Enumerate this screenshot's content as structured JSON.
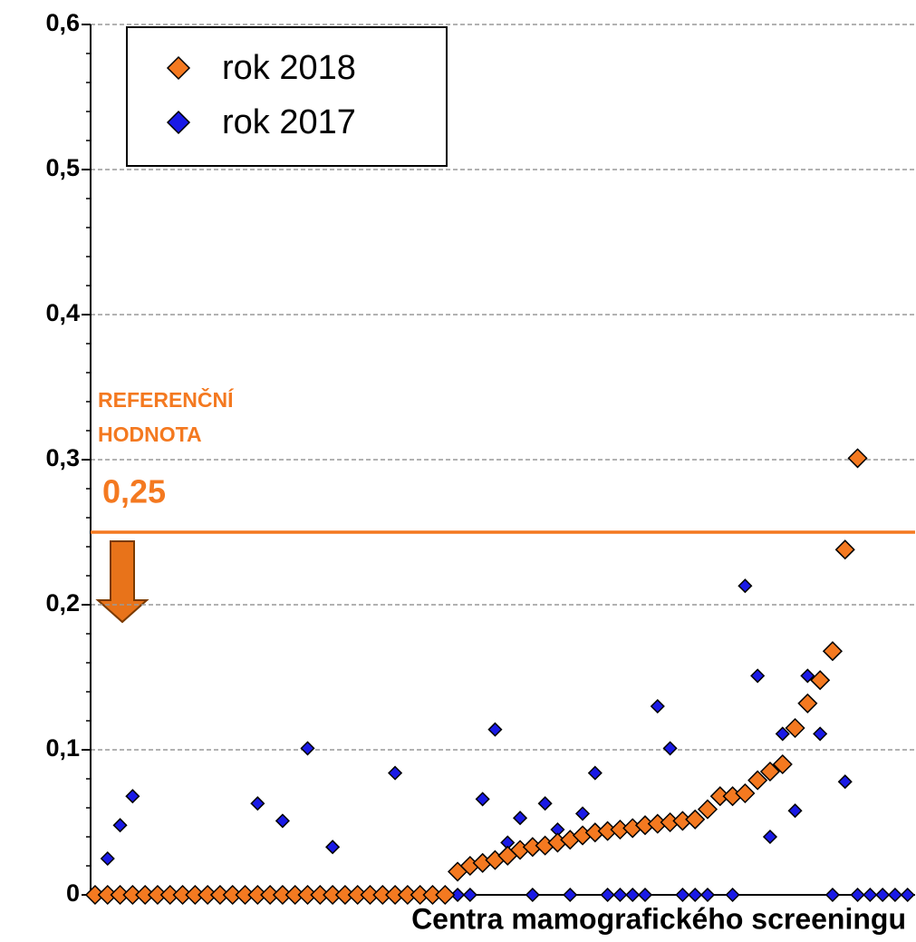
{
  "chart_data": {
    "type": "scatter",
    "xlabel": "Centra mamografického screeningu",
    "x": [
      1,
      2,
      3,
      4,
      5,
      6,
      7,
      8,
      9,
      10,
      11,
      12,
      13,
      14,
      15,
      16,
      17,
      18,
      19,
      20,
      21,
      22,
      23,
      24,
      25,
      26,
      27,
      28,
      29,
      30,
      31,
      32,
      33,
      34,
      35,
      36,
      37,
      38,
      39,
      40,
      41,
      42,
      43,
      44,
      45,
      46,
      47,
      48,
      49,
      50,
      51,
      52,
      53,
      54,
      55,
      56,
      57,
      58,
      59,
      60,
      61,
      62,
      63,
      64,
      65,
      66
    ],
    "xlim": [
      0.64,
      66.6
    ],
    "ylim": [
      0,
      0.6
    ],
    "yticks": [
      0,
      {
        "value": 0.1,
        "label": "0,1"
      },
      {
        "value": 0.2,
        "label": "0,2"
      },
      {
        "value": 0.3,
        "label": "0,3"
      },
      {
        "value": 0.4,
        "label": "0,4"
      },
      {
        "value": 0.5,
        "label": "0,5"
      },
      {
        "value": 0.6,
        "label": "0,6"
      }
    ],
    "grid": true,
    "legend": "upper left",
    "series": [
      {
        "name": "rok 2018",
        "color": "#f47920",
        "values": [
          0,
          0,
          0,
          0,
          0,
          0,
          0,
          0,
          0,
          0,
          0,
          0,
          0,
          0,
          0,
          0,
          0,
          0,
          0,
          0,
          0,
          0,
          0,
          0,
          0,
          0,
          0,
          0,
          0,
          0.016,
          0.02,
          0.022,
          0.024,
          0.027,
          0.031,
          0.033,
          0.034,
          0.036,
          0.038,
          0.041,
          0.043,
          0.044,
          0.045,
          0.046,
          0.048,
          0.049,
          0.05,
          0.051,
          0.052,
          0.059,
          0.068,
          0.068,
          0.07,
          0.079,
          0.085,
          0.09,
          0.115,
          0.132,
          0.148,
          0.168,
          0.238,
          0.301,
          null,
          null,
          null,
          null
        ]
      },
      {
        "name": "rok 2017",
        "color": "#1a1ae6",
        "values": [
          0,
          0.025,
          0.048,
          0.068,
          0,
          0,
          0,
          0,
          0,
          0,
          0,
          0,
          0,
          0.063,
          0,
          0.051,
          0,
          0.101,
          0,
          0.033,
          0,
          0,
          0,
          0,
          0.084,
          0,
          0,
          0,
          0,
          0,
          0,
          0.066,
          0.114,
          0.036,
          0.053,
          0,
          0.063,
          0.045,
          0,
          0.056,
          0.084,
          0,
          0,
          0,
          0,
          0.13,
          0.101,
          0,
          0,
          0,
          null,
          0,
          0.213,
          0.151,
          0.04,
          0.111,
          0.058,
          0.151,
          0.111,
          0,
          0.078,
          0,
          0,
          0,
          0,
          0
        ]
      }
    ],
    "reference_line": {
      "value": 0.25,
      "label": "0,25",
      "title": [
        "REFERENČNÍ",
        "HODNOTA"
      ],
      "color": "#f47920"
    }
  }
}
